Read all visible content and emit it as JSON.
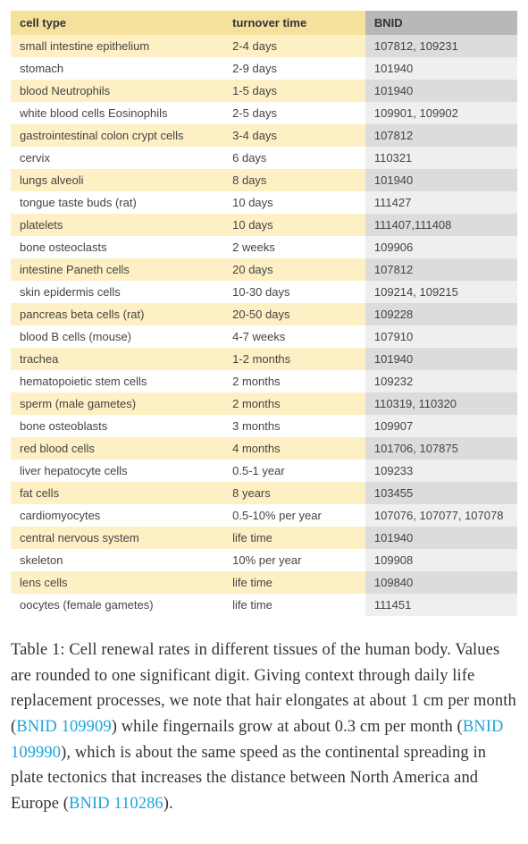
{
  "table": {
    "columns": [
      "cell type",
      "turnover time",
      "BNID"
    ],
    "header_bg": [
      "#f6e19c",
      "#f6e19c",
      "#b8b8b8"
    ],
    "col_widths": [
      "42%",
      "28%",
      "30%"
    ],
    "row_bg_even": {
      "cells": "#fef0c5",
      "bnid": "#dcdcdc"
    },
    "row_bg_odd": {
      "cells": "#ffffff",
      "bnid": "#efefef"
    },
    "font_size": 13,
    "rows": [
      [
        "small intestine epithelium",
        "2-4 days",
        "107812, 109231"
      ],
      [
        "stomach",
        "2-9 days",
        "101940"
      ],
      [
        "blood Neutrophils",
        "1-5 days",
        "101940"
      ],
      [
        "white blood cells Eosinophils",
        "2-5 days",
        "109901, 109902"
      ],
      [
        "gastrointestinal colon crypt cells",
        "3-4 days",
        "107812"
      ],
      [
        "cervix",
        "6 days",
        "110321"
      ],
      [
        "lungs alveoli",
        "8 days",
        "101940"
      ],
      [
        "tongue taste buds (rat)",
        "10 days",
        "111427"
      ],
      [
        "platelets",
        "10 days",
        "111407,111408"
      ],
      [
        "bone osteoclasts",
        "2 weeks",
        "109906"
      ],
      [
        "intestine Paneth cells",
        "20 days",
        "107812"
      ],
      [
        "skin epidermis cells",
        "10-30 days",
        "109214, 109215"
      ],
      [
        "pancreas beta cells (rat)",
        "20-50 days",
        "109228"
      ],
      [
        "blood B cells (mouse)",
        "4-7 weeks",
        "107910"
      ],
      [
        "trachea",
        "1-2 months",
        "101940"
      ],
      [
        "hematopoietic stem cells",
        "2 months",
        "109232"
      ],
      [
        "sperm (male gametes)",
        "2 months",
        "110319, 110320"
      ],
      [
        "bone osteoblasts",
        "3 months",
        "109907"
      ],
      [
        "red blood cells",
        "4 months",
        "101706, 107875"
      ],
      [
        "liver hepatocyte cells",
        "0.5-1 year",
        "109233"
      ],
      [
        "fat cells",
        "8 years",
        "103455"
      ],
      [
        "cardiomyocytes",
        "0.5-10% per year",
        "107076, 107077, 107078"
      ],
      [
        "central nervous system",
        "life time",
        "101940"
      ],
      [
        "skeleton",
        "10% per year",
        "109908"
      ],
      [
        "lens cells",
        "life time",
        "109840"
      ],
      [
        "oocytes (female gametes)",
        "life time",
        "111451"
      ]
    ]
  },
  "caption": {
    "prefix": "Table 1: Cell renewal rates in different tissues of the human body. Values are rounded to one significant digit. Giving context through daily life replacement processes, we note that hair elongates at about 1 cm per month (",
    "link1_text": "BNID 109909",
    "mid1": ") while fingernails grow at about 0.3 cm per month (",
    "link2_text": "BNID 109990",
    "mid2": "), which is about the same speed as the continental spreading in plate tectonics that increases the distance between North America and Europe (",
    "link3_text": "BNID 110286",
    "suffix": ").",
    "font_size": 18.5,
    "line_height": 1.55,
    "text_color": "#333333",
    "link_color": "#1ca6d9"
  }
}
